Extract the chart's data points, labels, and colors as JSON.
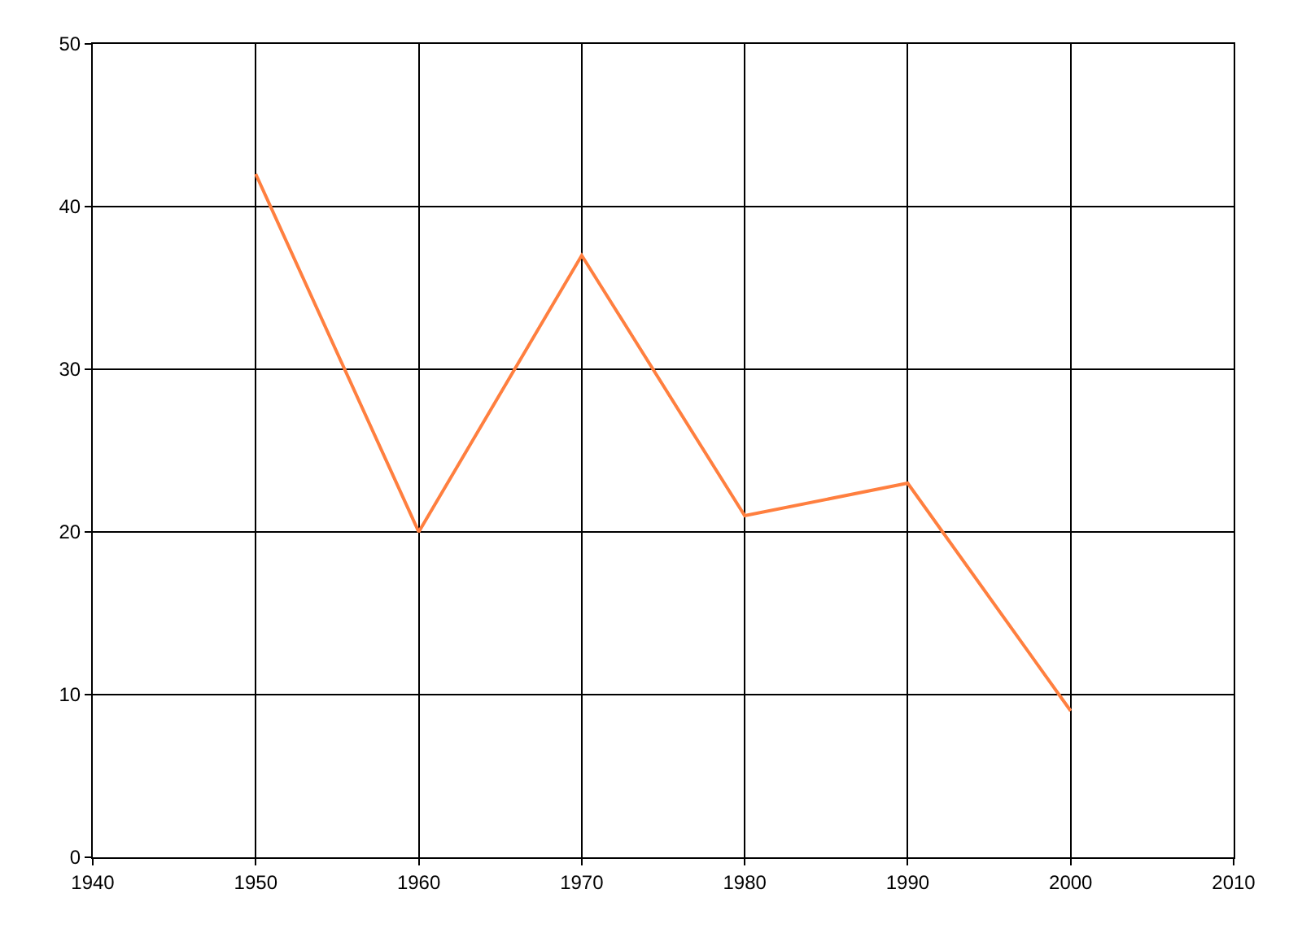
{
  "chart_data": {
    "type": "line",
    "x": [
      1950,
      1960,
      1970,
      1980,
      1990,
      2000
    ],
    "series": [
      {
        "color": "#ff7f3f",
        "values": [
          42,
          20,
          37,
          21,
          23,
          9
        ]
      }
    ],
    "xlim": [
      1940,
      2010
    ],
    "xticks": [
      1940,
      1950,
      1960,
      1970,
      1980,
      1990,
      2000,
      2010
    ],
    "ylim": [
      0,
      50
    ],
    "yticks": [
      0,
      10,
      20,
      30,
      40,
      50
    ],
    "grid": true,
    "marker": "none",
    "line_style": "solid"
  }
}
